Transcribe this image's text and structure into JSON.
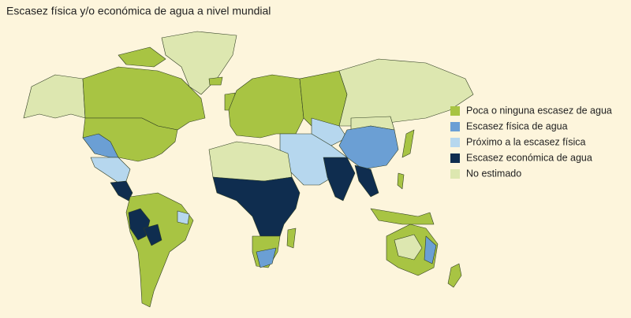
{
  "title": "Escasez física y/o económica de agua a nivel mundial",
  "legend": [
    {
      "label": "Poca o ninguna escasez de agua",
      "color": "#a8c443"
    },
    {
      "label": "Escasez física de agua",
      "color": "#6b9fd4"
    },
    {
      "label": "Próximo a la escasez física",
      "color": "#b6d7ee"
    },
    {
      "label": "Escasez económica de agua",
      "color": "#0f2d4f"
    },
    {
      "label": "No estimado",
      "color": "#dde7b0"
    }
  ]
}
